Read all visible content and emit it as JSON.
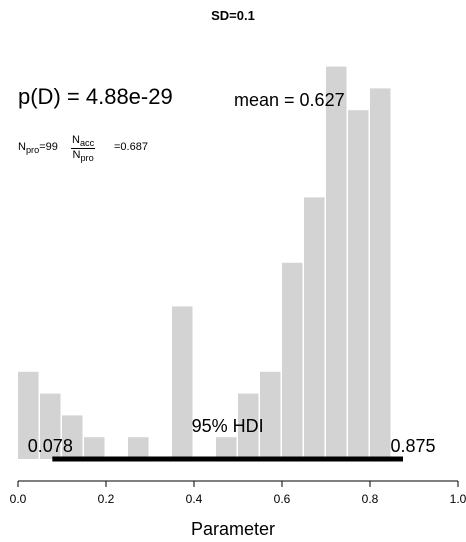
{
  "chart_data": {
    "type": "bar",
    "title": "SD=0.1",
    "xlabel": "Parameter",
    "ylabel": "",
    "xlim": [
      0,
      1
    ],
    "xticks": [
      "0.0",
      "0.2",
      "0.4",
      "0.6",
      "0.8",
      "1.0"
    ],
    "bin_width": 0.05,
    "bin_starts": [
      0.0,
      0.05,
      0.1,
      0.15,
      0.2,
      0.25,
      0.3,
      0.35,
      0.4,
      0.45,
      0.5,
      0.55,
      0.6,
      0.65,
      0.7,
      0.75,
      0.8
    ],
    "values": [
      4,
      3,
      2,
      1,
      0,
      1,
      0,
      7,
      0,
      1,
      3,
      4,
      9,
      12,
      18,
      16,
      17
    ],
    "bar_color": "#d3d3d3",
    "hdi": {
      "label": "95% HDI",
      "low": 0.078,
      "high": 0.875,
      "low_label": "0.078",
      "high_label": "0.875"
    },
    "annotations": {
      "pd_label": "p(D)",
      "pd_value": "= 4.88e-29",
      "mean_text": "mean = 0.627",
      "npro_prefix": "N",
      "npro_sub": "pro",
      "npro_value": "=99",
      "ratio_num_prefix": "N",
      "ratio_num_sub": "acc",
      "ratio_den_prefix": "N",
      "ratio_den_sub": "pro",
      "ratio_value": "=0.687"
    }
  }
}
